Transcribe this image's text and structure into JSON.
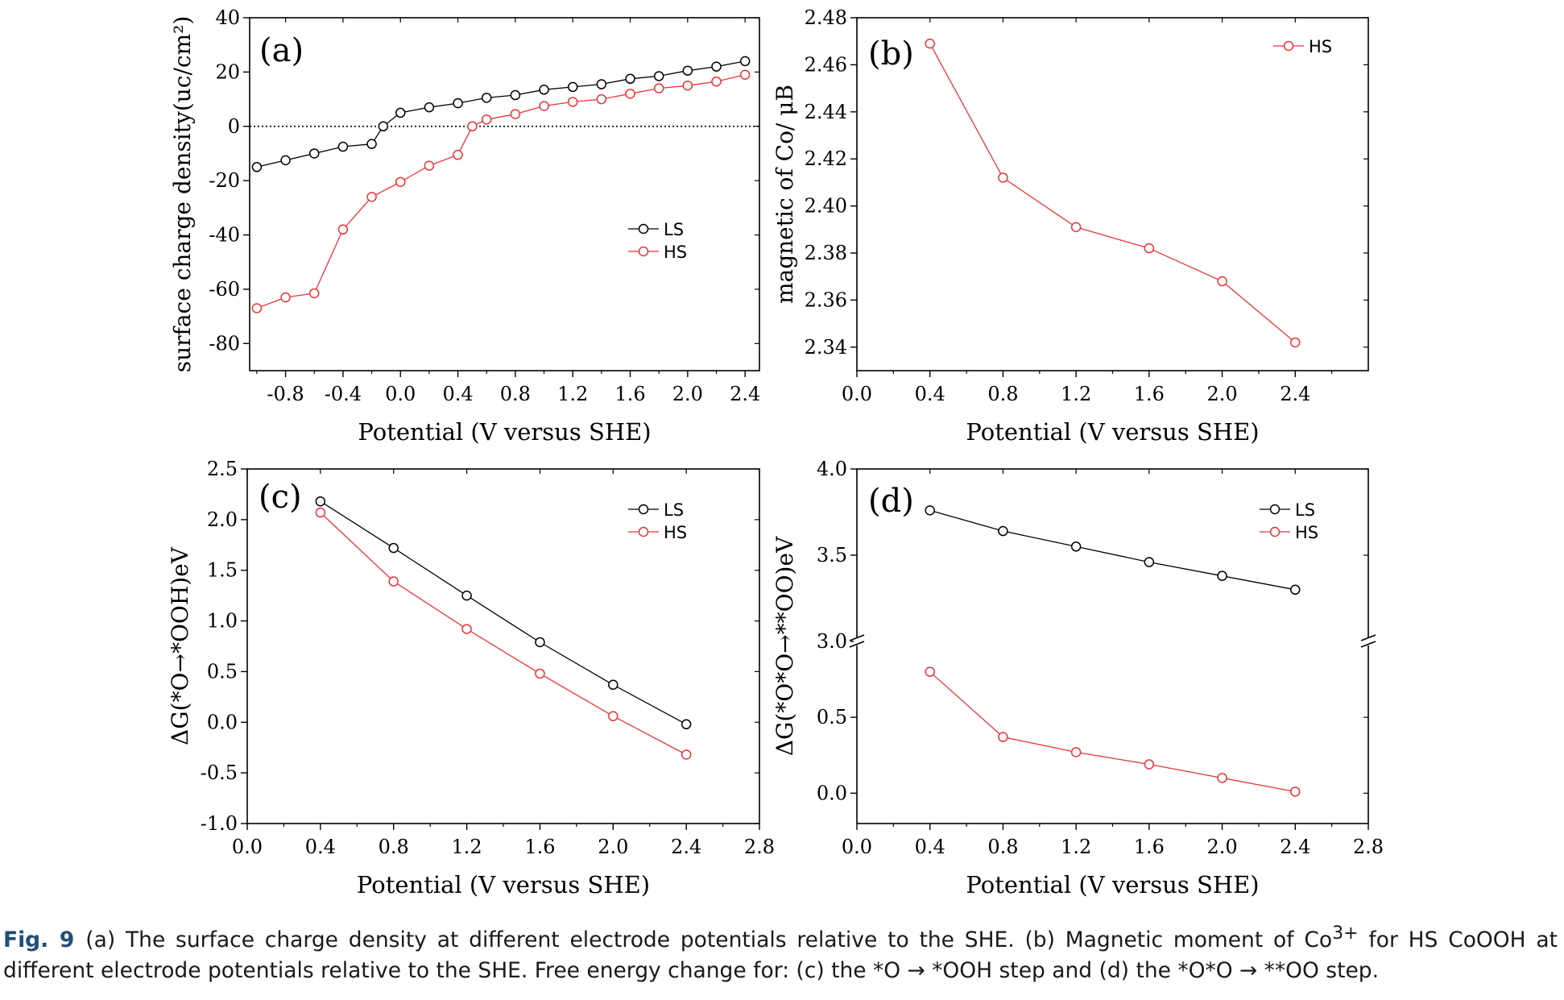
{
  "chart_data": [
    {
      "panel": "(a)",
      "type": "line",
      "xlabel": "Potential (V versus SHE)",
      "ylabel": "surface charge density(uc/cm²)",
      "xlim": [
        -1.05,
        2.5
      ],
      "ylim": [
        -90,
        40
      ],
      "xticks": [
        "-0.8",
        "-0.4",
        "0.0",
        "0.4",
        "0.8",
        "1.2",
        "1.6",
        "2.0",
        "2.4"
      ],
      "yticks": [
        "-80",
        "-60",
        "-40",
        "-20",
        "0",
        "20",
        "40"
      ],
      "reference_line": {
        "y": 0,
        "style": "dotted"
      },
      "legend_position": "center-right",
      "series": [
        {
          "name": "LS",
          "color": "#000000",
          "x": [
            -1.0,
            -0.8,
            -0.6,
            -0.4,
            -0.2,
            -0.12,
            0.0,
            0.2,
            0.4,
            0.6,
            0.8,
            1.0,
            1.2,
            1.4,
            1.6,
            1.8,
            2.0,
            2.2,
            2.4
          ],
          "y": [
            -15,
            -12.5,
            -10,
            -7.5,
            -6.5,
            0,
            5,
            7,
            8.5,
            10.5,
            11.5,
            13.5,
            14.5,
            15.5,
            17.5,
            18.5,
            20.5,
            22,
            24
          ]
        },
        {
          "name": "HS",
          "color": "#e8353a",
          "x": [
            -1.0,
            -0.8,
            -0.6,
            -0.4,
            -0.2,
            0.0,
            0.2,
            0.4,
            0.5,
            0.6,
            0.8,
            1.0,
            1.2,
            1.4,
            1.6,
            1.8,
            2.0,
            2.2,
            2.4
          ],
          "y": [
            -67,
            -63,
            -61.5,
            -38,
            -26,
            -20.5,
            -14.5,
            -10.5,
            0,
            2.5,
            4.5,
            7.5,
            9,
            10,
            12,
            14,
            15,
            16.5,
            19
          ]
        }
      ]
    },
    {
      "panel": "(b)",
      "type": "line",
      "xlabel": "Potential (V versus SHE)",
      "ylabel": "magnetic of Co/ μB",
      "xlim": [
        0.0,
        2.8
      ],
      "ylim": [
        2.33,
        2.48
      ],
      "xticks": [
        "0.0",
        "0.4",
        "0.8",
        "1.2",
        "1.6",
        "2.0",
        "2.4"
      ],
      "yticks": [
        "2.34",
        "2.36",
        "2.38",
        "2.40",
        "2.42",
        "2.44",
        "2.46",
        "2.48"
      ],
      "legend_position": "top-right",
      "series": [
        {
          "name": "HS",
          "color": "#e8353a",
          "x": [
            0.4,
            0.8,
            1.2,
            1.6,
            2.0,
            2.4
          ],
          "y": [
            2.469,
            2.412,
            2.391,
            2.382,
            2.368,
            2.342
          ]
        }
      ]
    },
    {
      "panel": "(c)",
      "type": "line",
      "xlabel": "Potential (V versus SHE)",
      "ylabel": "ΔG(*O→*OOH)eV",
      "xlim": [
        0.0,
        2.8
      ],
      "ylim": [
        -1.0,
        2.5
      ],
      "xticks": [
        "0.0",
        "0.4",
        "0.8",
        "1.2",
        "1.6",
        "2.0",
        "2.4",
        "2.8"
      ],
      "yticks": [
        "-1.0",
        "-0.5",
        "0.0",
        "0.5",
        "1.0",
        "1.5",
        "2.0",
        "2.5"
      ],
      "legend_position": "top-right",
      "series": [
        {
          "name": "LS",
          "color": "#000000",
          "x": [
            0.4,
            0.8,
            1.2,
            1.6,
            2.0,
            2.4
          ],
          "y": [
            2.18,
            1.72,
            1.25,
            0.79,
            0.37,
            -0.02
          ]
        },
        {
          "name": "HS",
          "color": "#e8353a",
          "x": [
            0.4,
            0.8,
            1.2,
            1.6,
            2.0,
            2.4
          ],
          "y": [
            2.07,
            1.39,
            0.92,
            0.48,
            0.06,
            -0.32
          ]
        }
      ]
    },
    {
      "panel": "(d)",
      "type": "line",
      "xlabel": "Potential (V versus SHE)",
      "ylabel": "ΔG(*O*O→**OO)eV",
      "xlim": [
        0.0,
        2.8
      ],
      "y_broken_axis": {
        "lower": [
          -0.2,
          1.0
        ],
        "upper": [
          3.0,
          4.0
        ]
      },
      "xticks": [
        "0.0",
        "0.4",
        "0.8",
        "1.2",
        "1.6",
        "2.0",
        "2.4",
        "2.8"
      ],
      "yticks": [
        "0.0",
        "0.5",
        "3.0",
        "3.5",
        "4.0"
      ],
      "legend_position": "top-right",
      "series": [
        {
          "name": "LS",
          "color": "#000000",
          "x": [
            0.4,
            0.8,
            1.2,
            1.6,
            2.0,
            2.4
          ],
          "y": [
            3.76,
            3.64,
            3.55,
            3.46,
            3.38,
            3.3
          ]
        },
        {
          "name": "HS",
          "color": "#e8353a",
          "x": [
            0.4,
            0.8,
            1.2,
            1.6,
            2.0,
            2.4
          ],
          "y": [
            0.8,
            0.37,
            0.27,
            0.19,
            0.1,
            0.01
          ]
        }
      ]
    }
  ],
  "caption": {
    "label": "Fig. 9",
    "text_a": "(a) The surface charge density at different electrode potentials relative to the SHE. (b) Magnetic moment of Co",
    "superscript": "3+",
    "text_b": " for HS CoOOH at different electrode potentials relative to the SHE. Free energy change for: (c) the *O → *OOH step and (d) the *O*O → **OO step."
  }
}
